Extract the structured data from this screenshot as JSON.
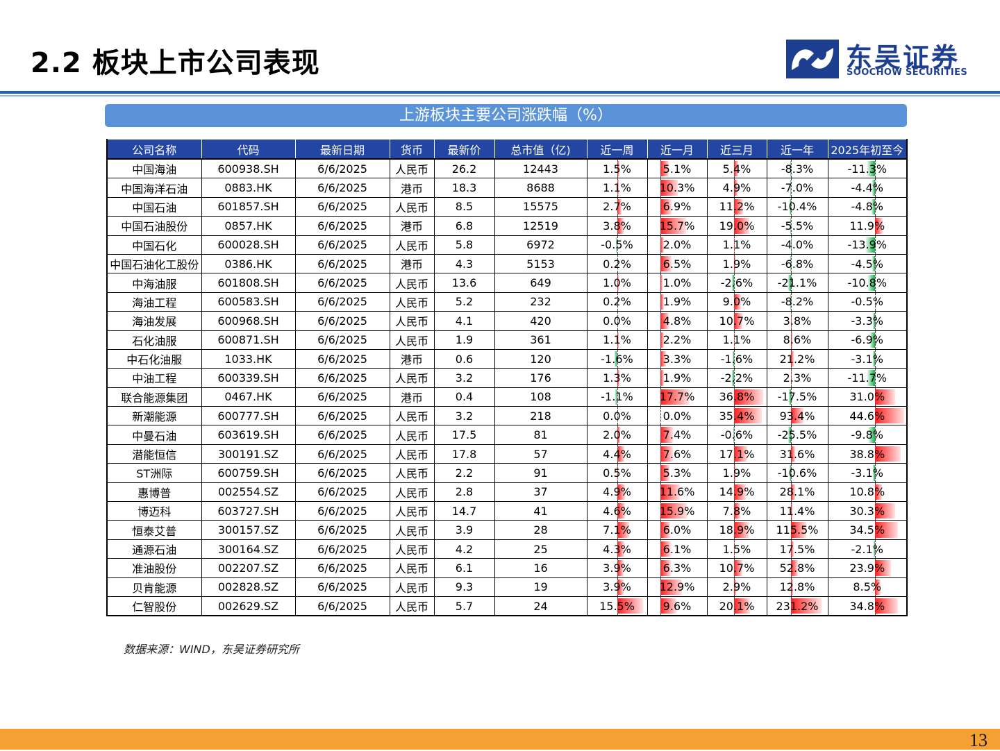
{
  "page": {
    "title": "2.2 板块上市公司表现",
    "page_number": "13"
  },
  "logo": {
    "cn": "东吴证券",
    "en": "SOOCHOW SECURITIES"
  },
  "table": {
    "title": "上游板块主要公司涨跌幅（%）",
    "columns": [
      "公司名称",
      "代码",
      "最新日期",
      "货币",
      "最新价",
      "总市值（亿)",
      "近一周",
      "近一月",
      "近三月",
      "近一年",
      "2025年初至今"
    ],
    "rows": [
      [
        "中国海油",
        "600938.SH",
        "6/6/2025",
        "人民币",
        "26.2",
        "12443",
        "1.5%",
        "5.1%",
        "5.4%",
        "-8.3%",
        "-11.3%"
      ],
      [
        "中国海洋石油",
        "0883.HK",
        "6/6/2025",
        "港币",
        "18.3",
        "8688",
        "1.1%",
        "10.3%",
        "4.9%",
        "-7.0%",
        "-4.4%"
      ],
      [
        "中国石油",
        "601857.SH",
        "6/6/2025",
        "人民币",
        "8.5",
        "15575",
        "2.7%",
        "6.9%",
        "11.2%",
        "-10.4%",
        "-4.8%"
      ],
      [
        "中国石油股份",
        "0857.HK",
        "6/6/2025",
        "港币",
        "6.8",
        "12519",
        "3.8%",
        "15.7%",
        "19.0%",
        "-5.5%",
        "11.9%"
      ],
      [
        "中国石化",
        "600028.SH",
        "6/6/2025",
        "人民币",
        "5.8",
        "6972",
        "-0.5%",
        "2.0%",
        "1.1%",
        "-4.0%",
        "-13.9%"
      ],
      [
        "中国石油化工股份",
        "0386.HK",
        "6/6/2025",
        "港币",
        "4.3",
        "5153",
        "0.2%",
        "6.5%",
        "1.9%",
        "-6.8%",
        "-4.5%"
      ],
      [
        "中海油服",
        "601808.SH",
        "6/6/2025",
        "人民币",
        "13.6",
        "649",
        "1.0%",
        "1.0%",
        "-2.6%",
        "-21.1%",
        "-10.8%"
      ],
      [
        "海油工程",
        "600583.SH",
        "6/6/2025",
        "人民币",
        "5.2",
        "232",
        "0.2%",
        "1.9%",
        "9.0%",
        "-8.2%",
        "-0.5%"
      ],
      [
        "海油发展",
        "600968.SH",
        "6/6/2025",
        "人民币",
        "4.1",
        "420",
        "0.0%",
        "4.8%",
        "10.7%",
        "3.8%",
        "-3.3%"
      ],
      [
        "石化油服",
        "600871.SH",
        "6/6/2025",
        "人民币",
        "1.9",
        "361",
        "1.1%",
        "2.2%",
        "1.1%",
        "8.6%",
        "-6.9%"
      ],
      [
        "中石化油服",
        "1033.HK",
        "6/6/2025",
        "港币",
        "0.6",
        "120",
        "-1.6%",
        "3.3%",
        "-1.6%",
        "21.2%",
        "-3.1%"
      ],
      [
        "中油工程",
        "600339.SH",
        "6/6/2025",
        "人民币",
        "3.2",
        "176",
        "1.3%",
        "1.9%",
        "-2.2%",
        "2.3%",
        "-11.7%"
      ],
      [
        "联合能源集团",
        "0467.HK",
        "6/6/2025",
        "港币",
        "0.4",
        "108",
        "-1.1%",
        "17.7%",
        "36.8%",
        "-17.5%",
        "31.0%"
      ],
      [
        "新潮能源",
        "600777.SH",
        "6/6/2025",
        "人民币",
        "3.2",
        "218",
        "0.0%",
        "0.0%",
        "35.4%",
        "93.4%",
        "44.6%"
      ],
      [
        "中曼石油",
        "603619.SH",
        "6/6/2025",
        "人民币",
        "17.5",
        "81",
        "2.0%",
        "7.4%",
        "-0.6%",
        "-25.5%",
        "-9.8%"
      ],
      [
        "潜能恒信",
        "300191.SZ",
        "6/6/2025",
        "人民币",
        "17.8",
        "57",
        "4.4%",
        "7.6%",
        "17.1%",
        "31.6%",
        "38.8%"
      ],
      [
        "ST洲际",
        "600759.SH",
        "6/6/2025",
        "人民币",
        "2.2",
        "91",
        "0.5%",
        "5.3%",
        "1.9%",
        "-10.6%",
        "-3.1%"
      ],
      [
        "惠博普",
        "002554.SZ",
        "6/6/2025",
        "人民币",
        "2.8",
        "37",
        "4.9%",
        "11.6%",
        "14.9%",
        "28.1%",
        "10.8%"
      ],
      [
        "博迈科",
        "603727.SH",
        "6/6/2025",
        "人民币",
        "14.7",
        "41",
        "4.6%",
        "15.9%",
        "7.8%",
        "11.4%",
        "30.3%"
      ],
      [
        "恒泰艾普",
        "300157.SZ",
        "6/6/2025",
        "人民币",
        "3.9",
        "28",
        "7.1%",
        "6.0%",
        "18.9%",
        "115.5%",
        "34.5%"
      ],
      [
        "通源石油",
        "300164.SZ",
        "6/6/2025",
        "人民币",
        "4.2",
        "25",
        "4.3%",
        "6.1%",
        "1.5%",
        "17.5%",
        "-2.1%"
      ],
      [
        "准油股份",
        "002207.SZ",
        "6/6/2025",
        "人民币",
        "6.1",
        "16",
        "3.9%",
        "6.3%",
        "10.7%",
        "52.8%",
        "23.9%"
      ],
      [
        "贝肯能源",
        "002828.SZ",
        "6/6/2025",
        "人民币",
        "9.3",
        "19",
        "3.9%",
        "12.9%",
        "2.9%",
        "12.8%",
        "8.5%"
      ],
      [
        "仁智股份",
        "002629.SZ",
        "6/6/2025",
        "人民币",
        "5.7",
        "24",
        "15.5%",
        "9.6%",
        "20.1%",
        "231.2%",
        "34.8%"
      ]
    ]
  },
  "source_note": "数据来源：WIND，东吴证券研究所",
  "colors": {
    "header_bg": "#2346a3",
    "banner_bg": "#5b93d9",
    "positive": "#ff1e1e",
    "negative": "#12b04a",
    "footer": "#f5a032",
    "brand": "#1e3f8f"
  }
}
